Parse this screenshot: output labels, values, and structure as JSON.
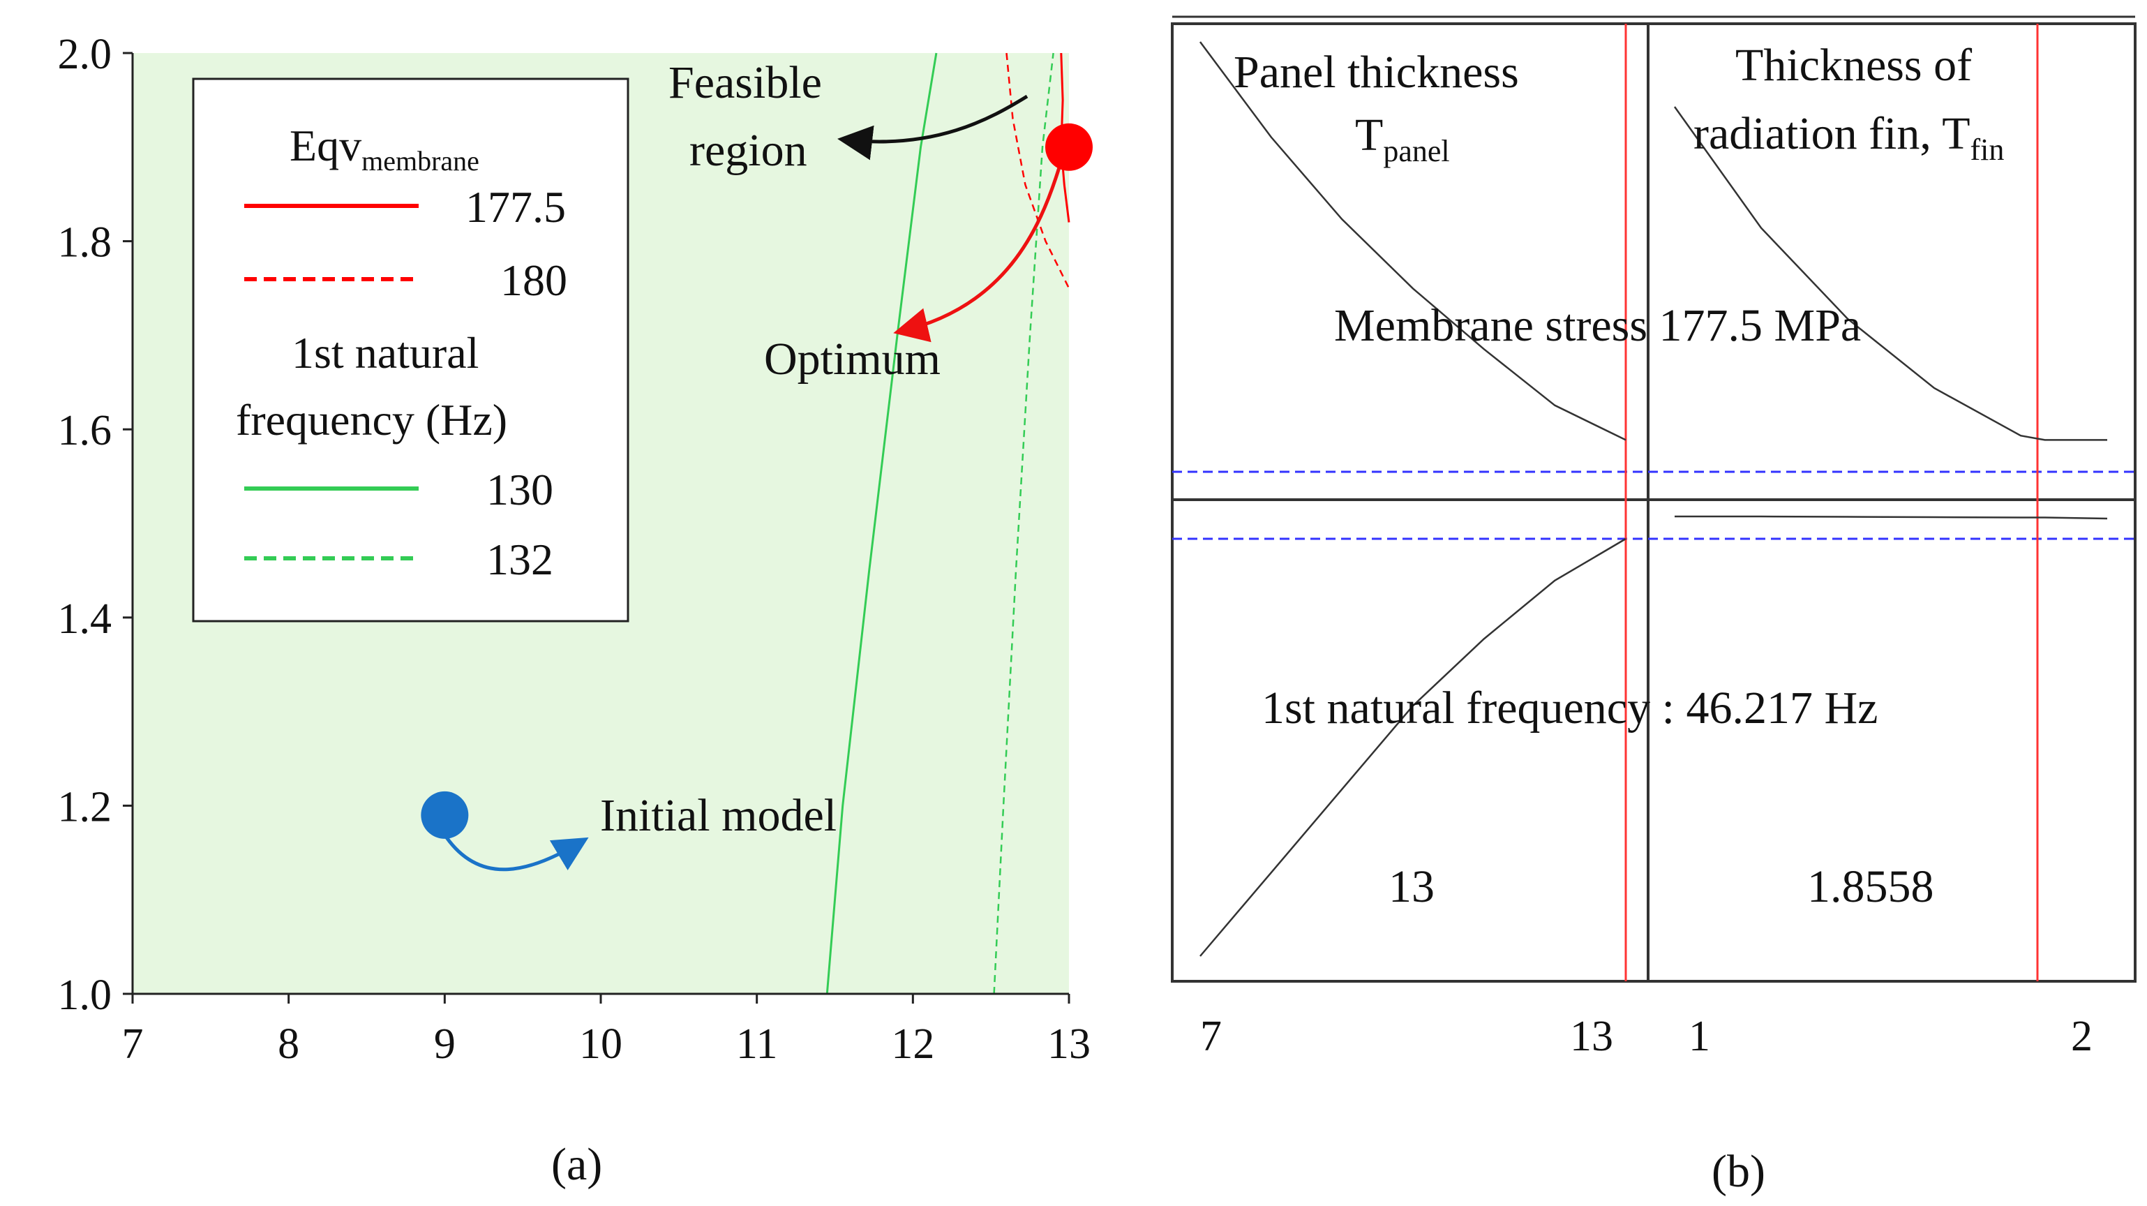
{
  "captions": {
    "a": "(a)",
    "b": "(b)"
  },
  "chart_data": [
    {
      "panel": "(a)",
      "type": "line",
      "xlim": [
        7,
        13
      ],
      "ylim": [
        1.0,
        2.0
      ],
      "x_ticks": [
        "7",
        "8",
        "9",
        "10",
        "11",
        "12",
        "13"
      ],
      "y_ticks": [
        "1.0",
        "1.2",
        "1.4",
        "1.6",
        "1.8",
        "2.0"
      ],
      "feasible_region_fill": "#e6f7e0",
      "legend": {
        "membrane_title": "Eqv",
        "membrane_sub": "membrane",
        "freq_title_line1": "1st natural",
        "freq_title_line2": "frequency  (Hz)",
        "entries": [
          {
            "label": "177.5",
            "color": "#ff0000",
            "style": "solid"
          },
          {
            "label": "180",
            "color": "#ff0000",
            "style": "dashed"
          },
          {
            "label": "130",
            "color": "#33cc55",
            "style": "solid"
          },
          {
            "label": "132",
            "color": "#33cc55",
            "style": "dashed"
          }
        ]
      },
      "series": [
        {
          "name": "130",
          "color": "#33cc55",
          "style": "solid",
          "x": [
            11.45,
            11.55,
            11.72,
            11.9,
            12.05,
            12.15
          ],
          "y": [
            1.0,
            1.2,
            1.45,
            1.7,
            1.9,
            2.0
          ]
        },
        {
          "name": "132",
          "color": "#33cc55",
          "style": "dashed",
          "x": [
            12.52,
            12.58,
            12.66,
            12.75,
            12.83,
            12.9
          ],
          "y": [
            1.0,
            1.2,
            1.45,
            1.7,
            1.9,
            2.0
          ]
        },
        {
          "name": "177.5",
          "color": "#ff0000",
          "style": "solid",
          "x": [
            12.95,
            12.96,
            12.95,
            12.97,
            13.0
          ],
          "y": [
            2.0,
            1.95,
            1.9,
            1.86,
            1.82
          ]
        },
        {
          "name": "180",
          "color": "#ff0000",
          "style": "dashed",
          "x": [
            12.6,
            12.64,
            12.72,
            12.85,
            13.0
          ],
          "y": [
            2.0,
            1.93,
            1.86,
            1.8,
            1.75
          ]
        }
      ],
      "points": [
        {
          "name": "Optimum",
          "x": 13.0,
          "y": 1.9,
          "color": "#ff0000"
        },
        {
          "name": "Initial model",
          "x": 9.0,
          "y": 1.19,
          "color": "#1a73c8"
        }
      ],
      "annotations": {
        "feasible_line1": "Feasible",
        "feasible_line2": "region",
        "optimum": "Optimum",
        "initial": "Initial model"
      }
    },
    {
      "panel": "(b)",
      "type": "line",
      "column_headers": {
        "left_line1": "Panel thickness",
        "left_line2": "T",
        "left_sub": "panel",
        "right_line1": "Thickness of",
        "right_line2": "radiation fin, T",
        "right_sub": "fin"
      },
      "row_labels": {
        "top": "Membrane  stress  177.5 MPa",
        "bottom": "1st natural  frequency  : 46.217 Hz"
      },
      "current_values": {
        "panel": "13",
        "fin": "1.8558"
      },
      "x_ticks_left": [
        "7",
        "13"
      ],
      "x_ticks_right": [
        "1",
        "2"
      ],
      "stress_vs_panel": {
        "x": [
          7,
          8,
          9,
          10,
          11,
          12,
          13
        ],
        "y": [
          1.0,
          0.78,
          0.59,
          0.43,
          0.29,
          0.16,
          0.08
        ]
      },
      "stress_vs_fin": {
        "x": [
          1.0,
          1.2,
          1.4,
          1.6,
          1.8,
          1.8558,
          2.0
        ],
        "y": [
          0.85,
          0.57,
          0.36,
          0.2,
          0.09,
          0.08,
          0.08
        ]
      },
      "freq_vs_panel": {
        "x": [
          7,
          8,
          9,
          10,
          11,
          12,
          13
        ],
        "y": [
          0.0,
          0.2,
          0.4,
          0.6,
          0.76,
          0.9,
          1.0
        ]
      },
      "freq_vs_fin": {
        "x": [
          1.0,
          1.2,
          1.4,
          1.6,
          1.8,
          1.8558,
          2.0
        ],
        "y": [
          1.0,
          1.0,
          0.99,
          0.98,
          0.97,
          0.97,
          0.94
        ]
      },
      "colors": {
        "curve": "#333333",
        "marker": "#ff3333",
        "reference": "#3333ff",
        "frame": "#333333"
      }
    }
  ]
}
